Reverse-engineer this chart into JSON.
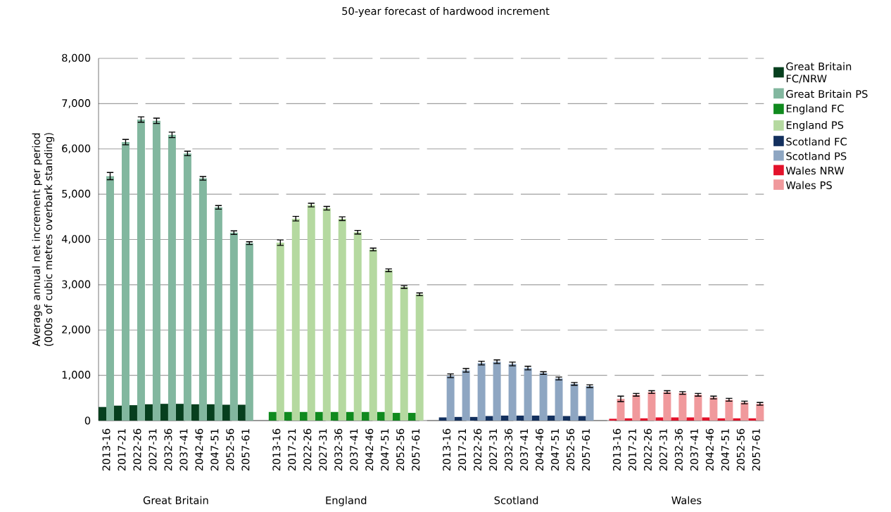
{
  "chart_data": {
    "type": "bar",
    "title": "50-year forecast of hardwood increment",
    "ylabel": "Average annual net increment per period (000s of cubic metres overbark standing)",
    "categories": [
      "2013-16",
      "2017-21",
      "2022-26",
      "2027-31",
      "2032-36",
      "2037-41",
      "2042-46",
      "2047-51",
      "2052-56",
      "2057-61",
      null,
      "2013-16",
      "2017-21",
      "2022-26",
      "2027-31",
      "2032-36",
      "2037-41",
      "2042-46",
      "2047-51",
      "2052-56",
      "2057-61",
      null,
      "2013-16",
      "2017-21",
      "2022-26",
      "2027-31",
      "2032-36",
      "2037-41",
      "2042-46",
      "2047-51",
      "2052-56",
      "2057-61",
      null,
      "2013-16",
      "2017-21",
      "2022-26",
      "2027-31",
      "2032-36",
      "2037-41",
      "2042-46",
      "2047-51",
      "2052-56",
      "2057-61"
    ],
    "series": [
      {
        "name": "Great Britain FC/NRW",
        "color": "#063f1e",
        "values": [
          300,
          330,
          340,
          360,
          370,
          370,
          360,
          360,
          350,
          350,
          null,
          null,
          null,
          null,
          null,
          null,
          null,
          null,
          null,
          null,
          null,
          null,
          null,
          null,
          null,
          null,
          null,
          null,
          null,
          null,
          null,
          null,
          null,
          null,
          null,
          null,
          null,
          null,
          null,
          null,
          null,
          null,
          null
        ]
      },
      {
        "name": "Great Britain PS",
        "color": "#82b79f",
        "values": [
          5400,
          6150,
          6650,
          6620,
          6310,
          5900,
          5350,
          4710,
          4150,
          3920,
          null,
          null,
          null,
          null,
          null,
          null,
          null,
          null,
          null,
          null,
          null,
          null,
          null,
          null,
          null,
          null,
          null,
          null,
          null,
          null,
          null,
          null,
          null,
          null,
          null,
          null,
          null,
          null,
          null,
          null,
          null,
          null,
          null
        ],
        "errors": [
          80,
          60,
          60,
          60,
          60,
          50,
          40,
          40,
          40,
          30,
          null,
          null,
          null,
          null,
          null,
          null,
          null,
          null,
          null,
          null,
          null,
          null,
          null,
          null,
          null,
          null,
          null,
          null,
          null,
          null,
          null,
          null,
          null,
          null,
          null,
          null,
          null,
          null,
          null,
          null,
          null,
          null,
          null
        ]
      },
      {
        "name": "England FC",
        "color": "#108a1e",
        "values": [
          null,
          null,
          null,
          null,
          null,
          null,
          null,
          null,
          null,
          null,
          null,
          190,
          190,
          190,
          190,
          190,
          190,
          190,
          190,
          170,
          170,
          null,
          null,
          null,
          null,
          null,
          null,
          null,
          null,
          null,
          null,
          null,
          null,
          null,
          null,
          null,
          null,
          null,
          null,
          null,
          null,
          null,
          null
        ]
      },
      {
        "name": "England PS",
        "color": "#b5d9a0",
        "values": [
          null,
          null,
          null,
          null,
          null,
          null,
          null,
          null,
          null,
          null,
          null,
          3930,
          4460,
          4760,
          4690,
          4460,
          4160,
          3780,
          3320,
          2950,
          2790,
          null,
          null,
          null,
          null,
          null,
          null,
          null,
          null,
          null,
          null,
          null,
          null,
          null,
          null,
          null,
          null,
          null,
          null,
          null,
          null,
          null,
          null
        ],
        "errors": [
          null,
          null,
          null,
          null,
          null,
          null,
          null,
          null,
          null,
          null,
          null,
          60,
          50,
          40,
          40,
          40,
          40,
          30,
          30,
          30,
          30,
          null,
          null,
          null,
          null,
          null,
          null,
          null,
          null,
          null,
          null,
          null,
          null,
          null,
          null,
          null,
          null,
          null,
          null,
          null,
          null,
          null,
          null
        ]
      },
      {
        "name": "Scotland FC",
        "color": "#13305e",
        "values": [
          null,
          null,
          null,
          null,
          null,
          null,
          null,
          null,
          null,
          null,
          null,
          null,
          null,
          null,
          null,
          null,
          null,
          null,
          null,
          null,
          null,
          null,
          70,
          80,
          80,
          100,
          110,
          110,
          110,
          110,
          100,
          100,
          null,
          null,
          null,
          null,
          null,
          null,
          null,
          null,
          null,
          null,
          null
        ]
      },
      {
        "name": "Scotland PS",
        "color": "#8ea6c2",
        "values": [
          null,
          null,
          null,
          null,
          null,
          null,
          null,
          null,
          null,
          null,
          null,
          null,
          null,
          null,
          null,
          null,
          null,
          null,
          null,
          null,
          null,
          null,
          990,
          1110,
          1270,
          1300,
          1250,
          1160,
          1050,
          930,
          810,
          760,
          null,
          null,
          null,
          null,
          null,
          null,
          null,
          null,
          null,
          null,
          null
        ],
        "errors": [
          null,
          null,
          null,
          null,
          null,
          null,
          null,
          null,
          null,
          null,
          null,
          null,
          null,
          null,
          null,
          null,
          null,
          null,
          null,
          null,
          null,
          null,
          40,
          40,
          40,
          40,
          40,
          40,
          30,
          30,
          30,
          30,
          null,
          null,
          null,
          null,
          null,
          null,
          null,
          null,
          null,
          null,
          null
        ]
      },
      {
        "name": "Wales NRW",
        "color": "#e3122b",
        "values": [
          null,
          null,
          null,
          null,
          null,
          null,
          null,
          null,
          null,
          null,
          null,
          null,
          null,
          null,
          null,
          null,
          null,
          null,
          null,
          null,
          null,
          null,
          null,
          null,
          null,
          null,
          null,
          null,
          null,
          null,
          null,
          null,
          null,
          40,
          50,
          50,
          70,
          70,
          70,
          70,
          50,
          50,
          50
        ]
      },
      {
        "name": "Wales PS",
        "color": "#f0999c",
        "values": [
          null,
          null,
          null,
          null,
          null,
          null,
          null,
          null,
          null,
          null,
          null,
          null,
          null,
          null,
          null,
          null,
          null,
          null,
          null,
          null,
          null,
          null,
          null,
          null,
          null,
          null,
          null,
          null,
          null,
          null,
          null,
          null,
          null,
          480,
          570,
          630,
          630,
          610,
          570,
          510,
          460,
          400,
          370
        ],
        "errors": [
          null,
          null,
          null,
          null,
          null,
          null,
          null,
          null,
          null,
          null,
          null,
          null,
          null,
          null,
          null,
          null,
          null,
          null,
          null,
          null,
          null,
          null,
          null,
          null,
          null,
          null,
          null,
          null,
          null,
          null,
          null,
          null,
          null,
          60,
          30,
          30,
          30,
          30,
          30,
          30,
          30,
          30,
          30
        ]
      }
    ],
    "ylim": [
      0,
      8000
    ],
    "yticks": [
      0,
      {
        "value": 1000,
        "label": "1,000"
      },
      {
        "value": 2000,
        "label": "2,000"
      },
      {
        "value": 3000,
        "label": "3,000"
      },
      {
        "value": 4000,
        "label": "4,000"
      },
      {
        "value": 5000,
        "label": "5,000"
      },
      {
        "value": 6000,
        "label": "6,000"
      },
      {
        "value": 7000,
        "label": "7,000"
      },
      {
        "value": 8000,
        "label": "8,000"
      }
    ],
    "grid": "y",
    "legend": "right",
    "annotations": [
      "Great Britain",
      "England",
      "Scotland",
      "Wales"
    ]
  }
}
